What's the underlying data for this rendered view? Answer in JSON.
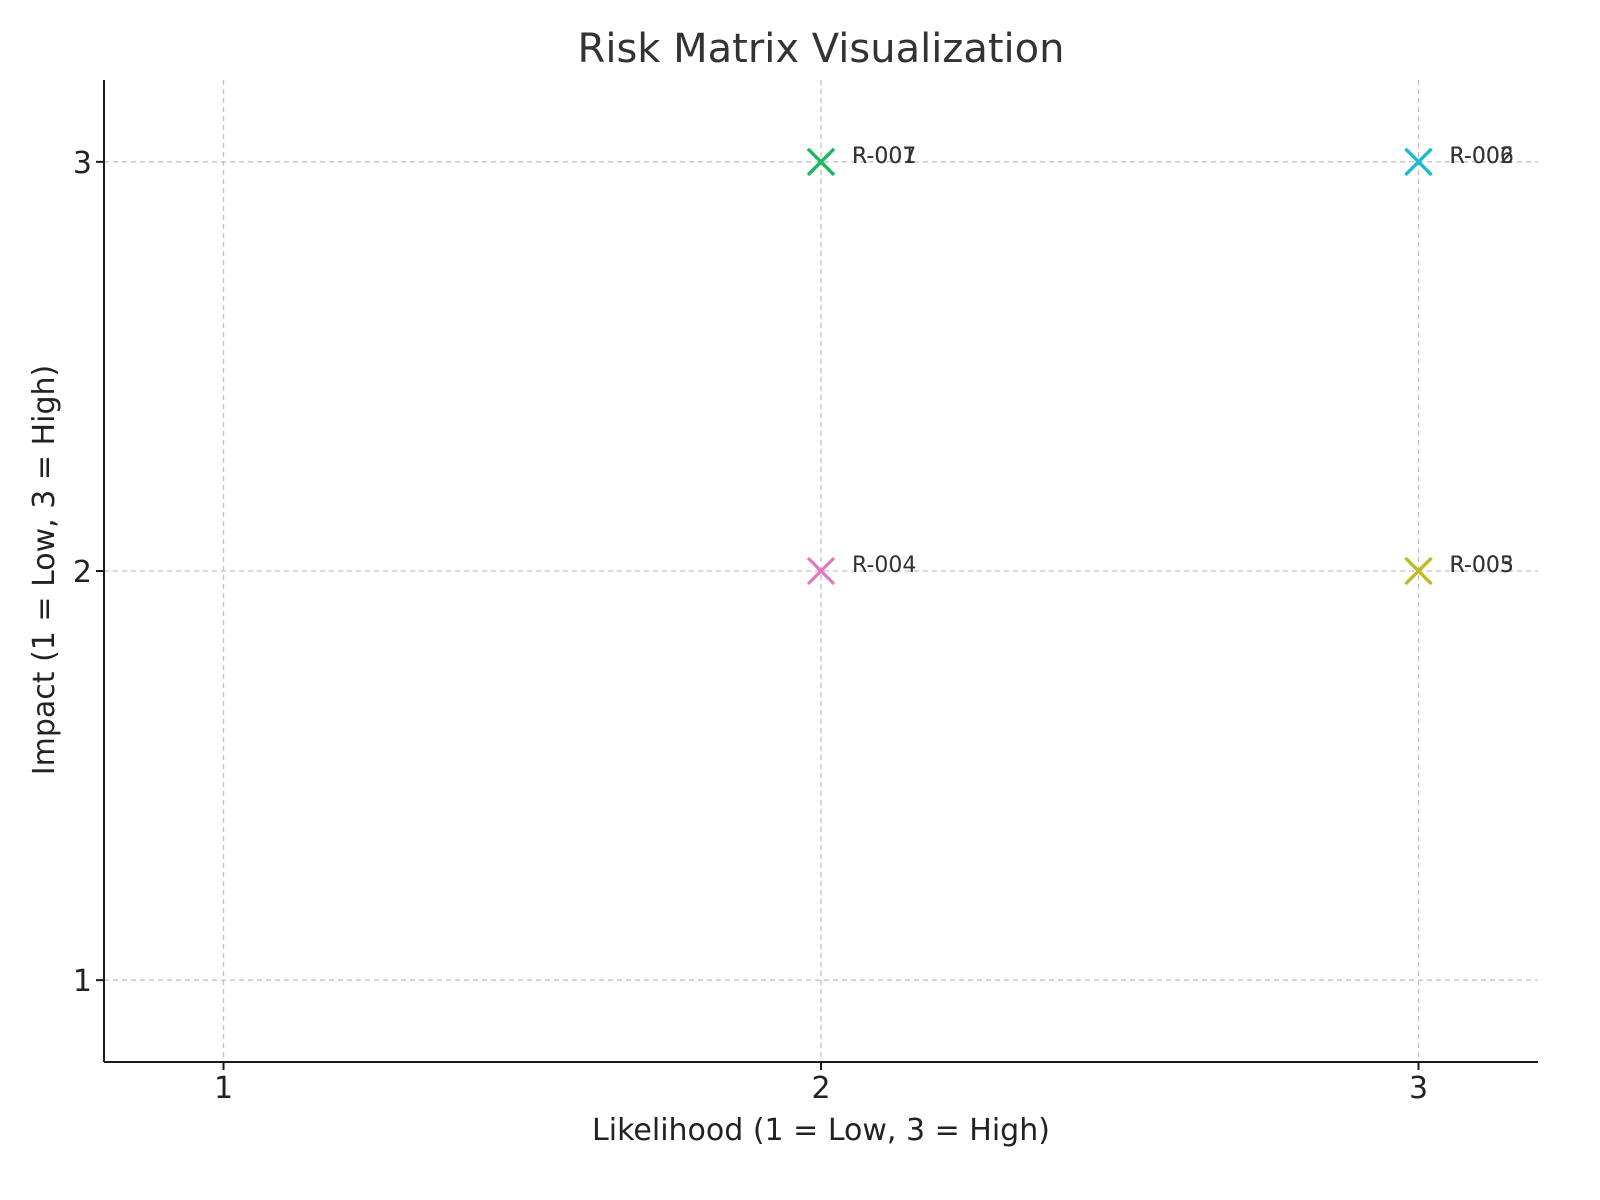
{
  "chart_data": {
    "type": "scatter",
    "title": "Risk Matrix Visualization",
    "xlabel": "Likelihood (1 = Low, 3 = High)",
    "ylabel": "Impact (1 = Low, 3 = High)",
    "xlim": [
      0.8,
      3.2
    ],
    "ylim": [
      0.8,
      3.2
    ],
    "xticks": [
      1,
      2,
      3
    ],
    "yticks": [
      1,
      2,
      3
    ],
    "xtick_labels": [
      "1",
      "2",
      "3"
    ],
    "ytick_labels": [
      "1",
      "2",
      "3"
    ],
    "grid": true,
    "marker": "x",
    "points": [
      {
        "label": "R-001",
        "x": 2,
        "y": 3,
        "color": "#2ca02c"
      },
      {
        "label": "R-002",
        "x": 3,
        "y": 3,
        "color": "#1f77b4"
      },
      {
        "label": "R-003",
        "x": 3,
        "y": 2,
        "color": "#ff7f0e"
      },
      {
        "label": "R-004",
        "x": 2,
        "y": 2,
        "color": "#e377c2"
      },
      {
        "label": "R-005",
        "x": 3,
        "y": 2,
        "color": "#bcbd22"
      },
      {
        "label": "R-006",
        "x": 3,
        "y": 3,
        "color": "#17becf"
      },
      {
        "label": "R-007",
        "x": 2,
        "y": 3,
        "color": "#1cb861"
      }
    ]
  }
}
